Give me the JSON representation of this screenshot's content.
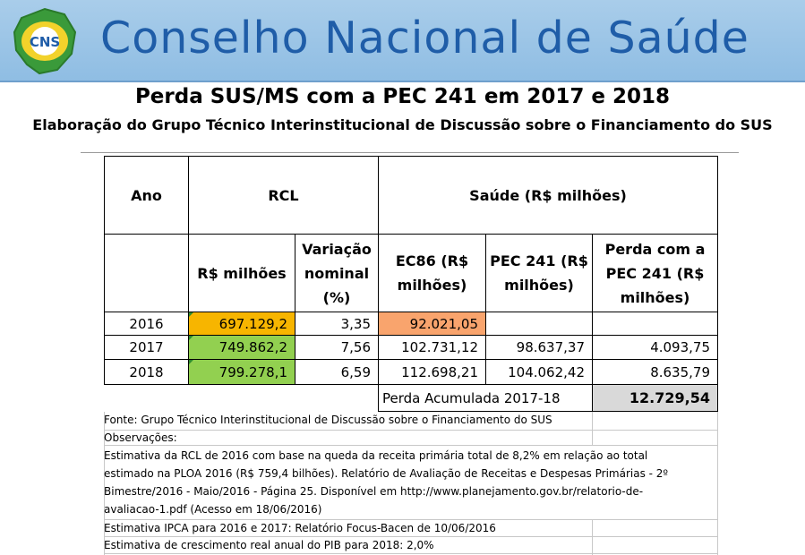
{
  "header": {
    "logo_text": "CNS",
    "org_name": "Conselho Nacional de Saúde"
  },
  "title": "Perda SUS/MS com a PEC 241 em 2017 e 2018",
  "subtitle": "Elaboração do Grupo Técnico Interinstitucional de Discussão sobre o Financiamento do SUS",
  "table": {
    "headers": {
      "ano": "Ano",
      "rcl": "RCL",
      "saude": "Saúde (R$ milhões)",
      "rcl_valor": "R$ milhões",
      "variacao": [
        "Variação",
        "nominal",
        "(%)"
      ],
      "ec86": [
        "EC86 (R$",
        "milhões)"
      ],
      "pec241": [
        "PEC 241 (R$",
        "milhões)"
      ],
      "perda": [
        "Perda com a",
        "PEC 241 (R$",
        "milhões)"
      ]
    },
    "rows": [
      {
        "ano": "2016",
        "rcl": "697.129,2",
        "variacao": "3,35",
        "ec86": "92.021,05",
        "pec241": "",
        "perda": ""
      },
      {
        "ano": "2017",
        "rcl": "749.862,2",
        "variacao": "7,56",
        "ec86": "102.731,12",
        "pec241": "98.637,37",
        "perda": "4.093,75"
      },
      {
        "ano": "2018",
        "rcl": "799.278,1",
        "variacao": "6,59",
        "ec86": "112.698,21",
        "pec241": "104.062,42",
        "perda": "8.635,79"
      }
    ],
    "total": {
      "label": "Perda Acumulada 2017-18",
      "value": "12.729,54"
    }
  },
  "notes": {
    "fonte": "Fonte: Grupo Técnico Interinstitucional de Discussão sobre o Financiamento do SUS",
    "observacoes": "Observações:",
    "obs1": [
      "Estimativa da RCL de 2016 com base na queda da receita primária total de 8,2% em relação ao total",
      "estimado na PLOA 2016 (R$ 759,4 bilhões). Relatório de Avaliação de Receitas e Despesas Primárias - 2º",
      "Bimestre/2016 - Maio/2016 - Página 25. Disponível em http://www.planejamento.gov.br/relatorio-de-",
      "avaliacao-1.pdf (Acesso em 18/06/2016)"
    ],
    "obs2": "Estimativa IPCA para 2016 e 2017: Relatório Focus-Bacen de 10/06/2016",
    "obs3": "Estimativa de crescimento real anual do PIB para 2018: 2,0%"
  },
  "colors": {
    "banner": "#a9cdea",
    "brand_blue": "#1f5da8",
    "rcl_2016": "#f7b500",
    "rcl_green": "#92d050",
    "ec86_2016": "#f9a46d",
    "total_gray": "#d9d9d9"
  }
}
